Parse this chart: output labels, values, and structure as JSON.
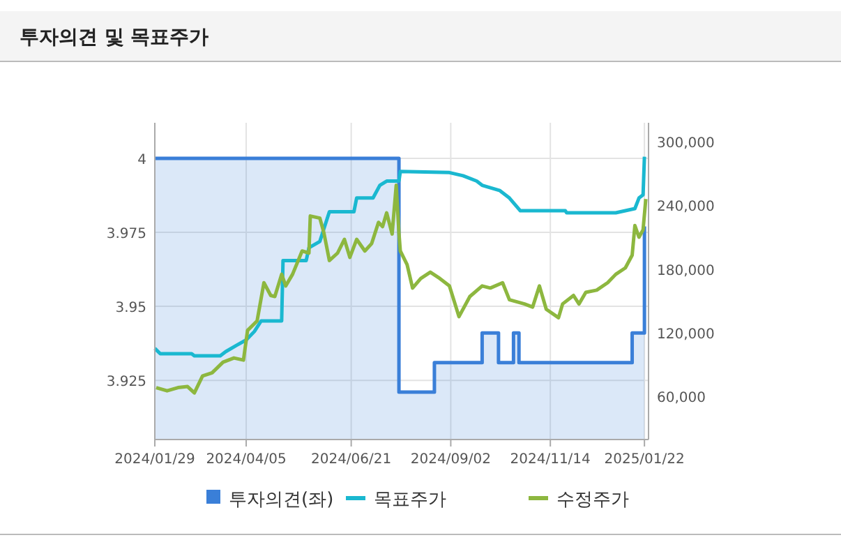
{
  "chart_data": {
    "type": "line",
    "title": "투자의견 및 목표주가",
    "legend": "bottom",
    "grid": true,
    "xlim": [
      "2024-01-29",
      "2025-01-25"
    ],
    "xticks": [
      {
        "value": "2024-01-29",
        "label": "2024/01/29"
      },
      {
        "value": "2024-04-05",
        "label": "2024/04/05"
      },
      {
        "value": "2024-06-21",
        "label": "2024/06/21"
      },
      {
        "value": "2024-09-02",
        "label": "2024/09/02"
      },
      {
        "value": "2024-11-14",
        "label": "2024/11/14"
      },
      {
        "value": "2025-01-22",
        "label": "2025/01/22"
      }
    ],
    "ylim": [
      3.905,
      4.012
    ],
    "yticks": [
      3.925,
      3.95,
      3.975,
      4
    ],
    "y2lim": [
      19000,
      318000
    ],
    "y2ticks": [
      {
        "value": 60000,
        "label": "60,000"
      },
      {
        "value": 120000,
        "label": "120,000"
      },
      {
        "value": 180000,
        "label": "180,000"
      },
      {
        "value": 240000,
        "label": "240,000"
      },
      {
        "value": 300000,
        "label": "300,000"
      }
    ],
    "series": [
      {
        "name": "투자의견(좌)",
        "type": "area",
        "color": "#3a7fd8",
        "x": [
          "2024-01-29",
          "2024-07-26",
          "2024-07-26",
          "2024-08-21",
          "2024-08-21",
          "2024-09-25",
          "2024-09-25",
          "2024-10-07",
          "2024-10-07",
          "2024-10-18",
          "2024-10-18",
          "2024-10-22",
          "2024-10-22",
          "2025-01-13",
          "2025-01-13",
          "2025-01-22",
          "2025-01-22"
        ],
        "values": [
          4,
          4,
          3.921,
          3.921,
          3.931,
          3.931,
          3.941,
          3.941,
          3.931,
          3.931,
          3.941,
          3.941,
          3.931,
          3.931,
          3.941,
          3.941,
          3.977
        ]
      },
      {
        "name": "목표주가",
        "axis": "y2",
        "color": "#1ab8d0",
        "x": [
          "2024-01-29",
          "2024-02-02",
          "2024-02-25",
          "2024-02-27",
          "2024-03-17",
          "2024-03-21",
          "2024-03-29",
          "2024-04-05",
          "2024-04-11",
          "2024-04-16",
          "2024-05-01",
          "2024-05-02",
          "2024-05-19",
          "2024-05-21",
          "2024-05-29",
          "2024-06-05",
          "2024-06-23",
          "2024-06-25",
          "2024-07-07",
          "2024-07-12",
          "2024-07-17",
          "2024-07-26",
          "2024-07-27",
          "2024-09-01",
          "2024-09-11",
          "2024-09-21",
          "2024-09-25",
          "2024-10-08",
          "2024-10-15",
          "2024-10-23",
          "2024-11-25",
          "2024-11-26",
          "2025-01-01",
          "2025-01-15",
          "2025-01-18",
          "2025-01-21",
          "2025-01-22"
        ],
        "values": [
          105000,
          100000,
          100000,
          98000,
          98000,
          102000,
          108000,
          113000,
          121000,
          131000,
          131000,
          188000,
          188000,
          200000,
          206000,
          234000,
          234000,
          247000,
          247000,
          259000,
          263000,
          263000,
          272000,
          271000,
          268000,
          263000,
          259000,
          254000,
          247000,
          235000,
          235000,
          233000,
          233000,
          237000,
          247000,
          250000,
          286000
        ]
      },
      {
        "name": "수정주가",
        "axis": "y2",
        "color": "#8db73f",
        "x": [
          "2024-01-30",
          "2024-02-07",
          "2024-02-15",
          "2024-02-22",
          "2024-02-27",
          "2024-03-04",
          "2024-03-11",
          "2024-03-19",
          "2024-03-27",
          "2024-04-03",
          "2024-04-06",
          "2024-04-13",
          "2024-04-18",
          "2024-04-23",
          "2024-04-26",
          "2024-05-01",
          "2024-05-04",
          "2024-05-09",
          "2024-05-16",
          "2024-05-21",
          "2024-05-22",
          "2024-05-29",
          "2024-06-01",
          "2024-06-05",
          "2024-06-11",
          "2024-06-16",
          "2024-06-20",
          "2024-06-25",
          "2024-07-01",
          "2024-07-06",
          "2024-07-11",
          "2024-07-14",
          "2024-07-17",
          "2024-07-21",
          "2024-07-24",
          "2024-07-26",
          "2024-07-27",
          "2024-08-01",
          "2024-08-05",
          "2024-08-11",
          "2024-08-18",
          "2024-08-25",
          "2024-09-01",
          "2024-09-08",
          "2024-09-16",
          "2024-09-25",
          "2024-10-01",
          "2024-10-10",
          "2024-10-15",
          "2024-10-26",
          "2024-11-01",
          "2024-11-06",
          "2024-11-11",
          "2024-11-20",
          "2024-11-23",
          "2024-12-01",
          "2024-12-05",
          "2024-12-10",
          "2024-12-18",
          "2024-12-26",
          "2025-01-01",
          "2025-01-08",
          "2025-01-13",
          "2025-01-15",
          "2025-01-18",
          "2025-01-21",
          "2025-01-23"
        ],
        "values": [
          68000,
          65000,
          68000,
          69000,
          63000,
          79000,
          82000,
          92000,
          96000,
          94000,
          122000,
          131000,
          167000,
          155000,
          154000,
          175000,
          164000,
          175000,
          197000,
          195000,
          230000,
          228000,
          214000,
          188000,
          195000,
          208000,
          191000,
          208000,
          197000,
          204000,
          224000,
          220000,
          233000,
          213000,
          259000,
          214000,
          197000,
          184000,
          162000,
          171000,
          177000,
          171000,
          164000,
          135000,
          154000,
          164000,
          162000,
          167000,
          151000,
          147000,
          144000,
          164000,
          142000,
          134000,
          147000,
          155000,
          147000,
          158000,
          160000,
          167000,
          175000,
          181000,
          193000,
          221000,
          210000,
          217000,
          246000
        ]
      }
    ]
  }
}
